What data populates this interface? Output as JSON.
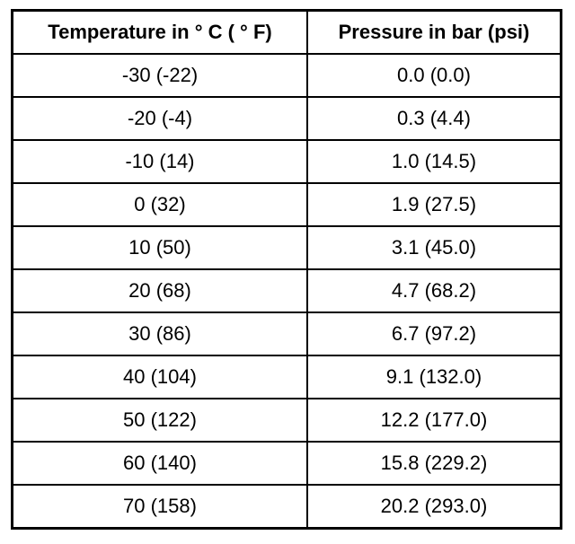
{
  "table": {
    "columns": [
      {
        "label": "Temperature in ° C ( ° F)"
      },
      {
        "label": "Pressure in bar (psi)"
      }
    ],
    "rows": [
      [
        "-30 (-22)",
        "0.0 (0.0)"
      ],
      [
        "-20 (-4)",
        "0.3 (4.4)"
      ],
      [
        "-10 (14)",
        "1.0 (14.5)"
      ],
      [
        "0 (32)",
        "1.9 (27.5)"
      ],
      [
        "10 (50)",
        "3.1 (45.0)"
      ],
      [
        "20 (68)",
        "4.7 (68.2)"
      ],
      [
        "30 (86)",
        "6.7 (97.2)"
      ],
      [
        "40 (104)",
        "9.1 (132.0)"
      ],
      [
        "50 (122)",
        "12.2 (177.0)"
      ],
      [
        "60 (140)",
        "15.8 (229.2)"
      ],
      [
        "70 (158)",
        "20.2 (293.0)"
      ]
    ]
  },
  "colors": {
    "border": "#000000",
    "text": "#000000",
    "background": "#ffffff"
  },
  "chart_data": {
    "type": "table",
    "title": "",
    "columns": [
      "Temperature in ° C ( ° F)",
      "Pressure in bar (psi)"
    ],
    "rows": [
      [
        "-30 (-22)",
        "0.0 (0.0)"
      ],
      [
        "-20 (-4)",
        "0.3 (4.4)"
      ],
      [
        "-10 (14)",
        "1.0 (14.5)"
      ],
      [
        "0 (32)",
        "1.9 (27.5)"
      ],
      [
        "10 (50)",
        "3.1 (45.0)"
      ],
      [
        "20 (68)",
        "4.7 (68.2)"
      ],
      [
        "30 (86)",
        "6.7 (97.2)"
      ],
      [
        "40 (104)",
        "9.1 (132.0)"
      ],
      [
        "50 (122)",
        "12.2 (177.0)"
      ],
      [
        "60 (140)",
        "15.8 (229.2)"
      ],
      [
        "70 (158)",
        "20.2 (293.0)"
      ]
    ],
    "temperature_c": [
      -30,
      -20,
      -10,
      0,
      10,
      20,
      30,
      40,
      50,
      60,
      70
    ],
    "temperature_f": [
      -22,
      -4,
      14,
      32,
      50,
      68,
      86,
      104,
      122,
      140,
      158
    ],
    "pressure_bar": [
      0.0,
      0.3,
      1.0,
      1.9,
      3.1,
      4.7,
      6.7,
      9.1,
      12.2,
      15.8,
      20.2
    ],
    "pressure_psi": [
      0.0,
      4.4,
      14.5,
      27.5,
      45.0,
      68.2,
      97.2,
      132.0,
      177.0,
      229.2,
      293.0
    ]
  }
}
